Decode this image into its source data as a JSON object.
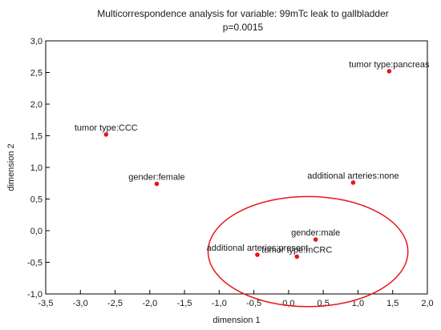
{
  "chart_data": {
    "type": "scatter",
    "title": "Multicorrespondence analysis for variable: 99mTc leak to gallbladder",
    "subtitle": "p=0.0015",
    "xlabel": "dimension 1",
    "ylabel": "dimension 2",
    "xlim": [
      -3.5,
      2.0
    ],
    "ylim": [
      -1.0,
      3.0
    ],
    "x_ticks": [
      "-3,5",
      "-3,0",
      "-2,5",
      "-2,0",
      "-1,5",
      "-1,0",
      "-0,5",
      "0,0",
      "0,5",
      "1,0",
      "1,5",
      "2,0"
    ],
    "y_ticks": [
      "-1,0",
      "-0,5",
      "0,0",
      "0,5",
      "1,0",
      "1,5",
      "2,0",
      "2,5",
      "3,0"
    ],
    "grid": false,
    "point_color": "#e8141b",
    "ellipse_color": "#e8141b",
    "points": [
      {
        "label": "tumor type:pancreas",
        "x": 1.45,
        "y": 2.52
      },
      {
        "label": "tumor type:CCC",
        "x": -2.63,
        "y": 1.52
      },
      {
        "label": "gender:female",
        "x": -1.9,
        "y": 0.74
      },
      {
        "label": "additional arteries:none",
        "x": 0.93,
        "y": 0.76
      },
      {
        "label": "gender:male",
        "x": 0.39,
        "y": -0.14
      },
      {
        "label": "additional arteries:present",
        "x": -0.45,
        "y": -0.38
      },
      {
        "label": "tumor type:mCRC",
        "x": 0.12,
        "y": -0.41
      }
    ],
    "ellipse": {
      "cx": 0.28,
      "cy": -0.33,
      "rx": 1.44,
      "ry": 0.87
    }
  }
}
